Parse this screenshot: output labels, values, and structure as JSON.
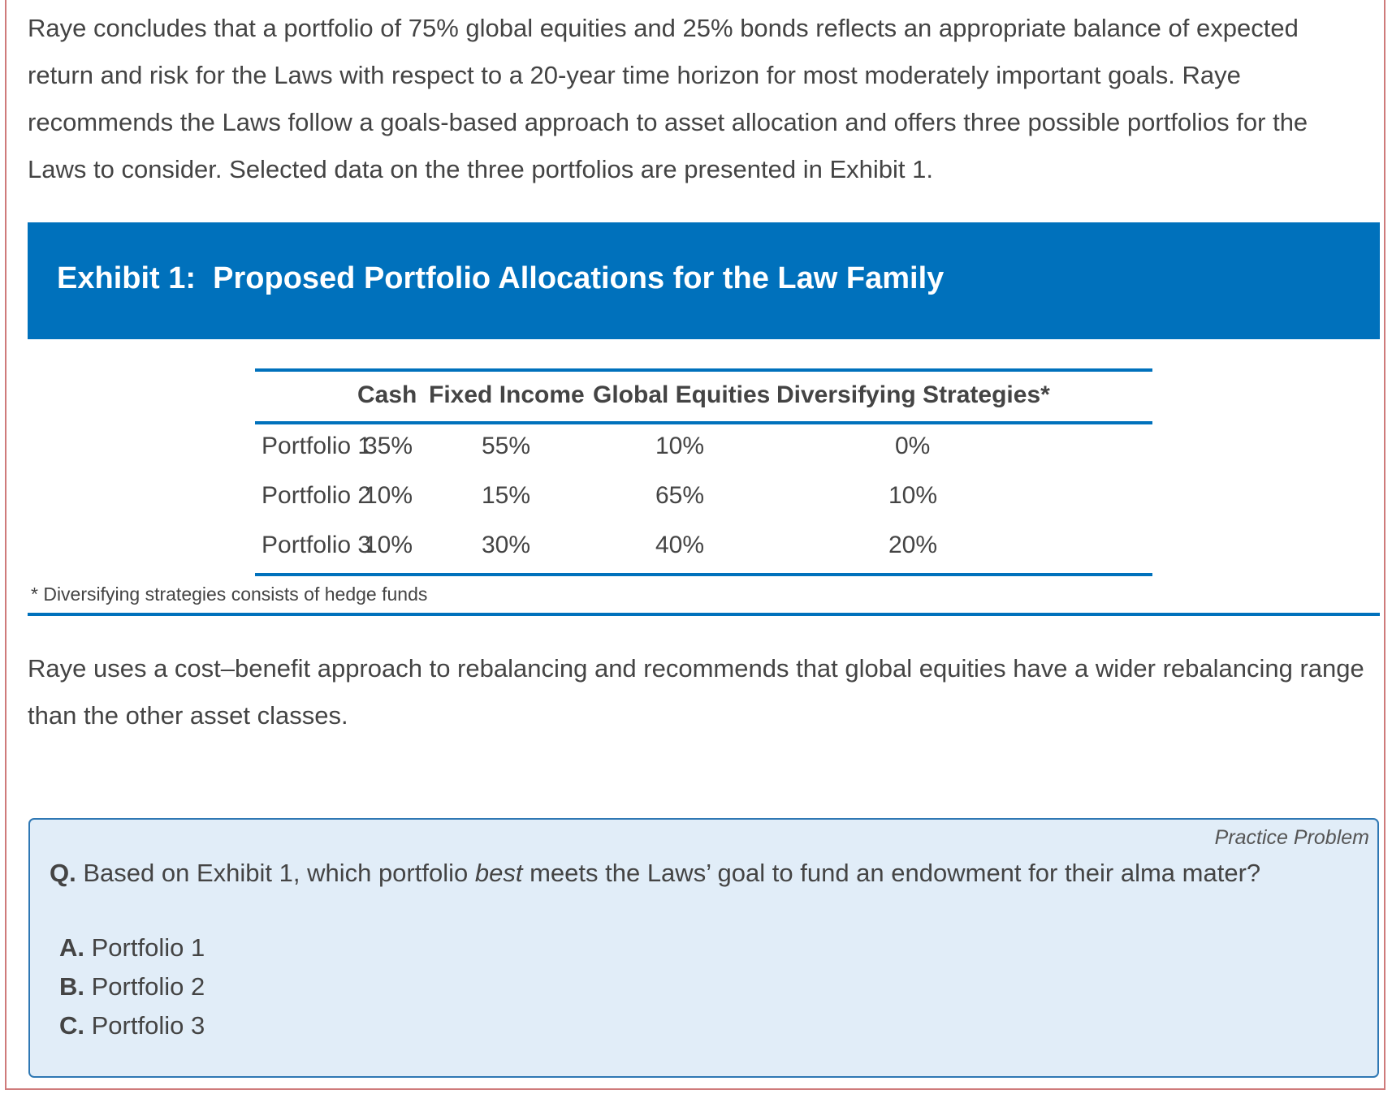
{
  "paragraphs": {
    "intro": "Raye concludes that a portfolio of 75% global equities and 25% bonds reflects an appropriate balance of expected return and risk for the Laws with respect to a 20-year time horizon for most moderately important goals. Raye recommends the Laws follow a goals-based approach to asset allocation and offers three possible portfolios for the Laws to consider. Selected data on the three portfolios are presented in Exhibit 1.",
    "rebalancing": "Raye uses a cost–benefit approach to rebalancing and recommends that global equities have a wider rebalancing range than the other asset classes."
  },
  "exhibit": {
    "title": "Exhibit 1:  Proposed Portfolio Allocations for the Law Family",
    "columns": [
      "Cash",
      "Fixed Income",
      "Global Equities",
      "Diversifying Strategies*"
    ],
    "rows": [
      {
        "label": "Portfolio 1",
        "values": [
          "35%",
          "55%",
          "10%",
          "0%"
        ]
      },
      {
        "label": "Portfolio 2",
        "values": [
          "10%",
          "15%",
          "65%",
          "10%"
        ]
      },
      {
        "label": "Portfolio 3",
        "values": [
          "10%",
          "30%",
          "40%",
          "20%"
        ]
      }
    ],
    "footnote": "* Diversifying strategies consists of hedge funds"
  },
  "practice": {
    "label": "Practice Problem",
    "question_prefix": "Q.",
    "question_before": " Based on Exhibit 1, which portfolio ",
    "question_emphasis": "best",
    "question_after": " meets the Laws’ goal to fund an endowment for their alma mater?",
    "options": [
      {
        "letter": "A.",
        "text": " Portfolio 1"
      },
      {
        "letter": "B.",
        "text": " Portfolio 2"
      },
      {
        "letter": "C.",
        "text": " Portfolio 3"
      }
    ]
  },
  "colors": {
    "accent_blue": "#0071bc",
    "box_background": "#e1edf8",
    "frame_border": "#cf7b7b",
    "text": "#444444"
  }
}
